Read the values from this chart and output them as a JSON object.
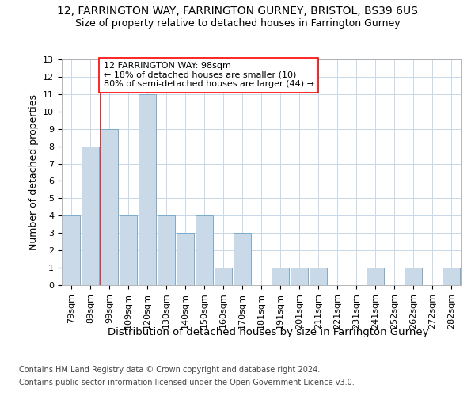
{
  "title_line1": "12, FARRINGTON WAY, FARRINGTON GURNEY, BRISTOL, BS39 6US",
  "title_line2": "Size of property relative to detached houses in Farrington Gurney",
  "xlabel": "Distribution of detached houses by size in Farrington Gurney",
  "ylabel": "Number of detached properties",
  "footnote1": "Contains HM Land Registry data © Crown copyright and database right 2024.",
  "footnote2": "Contains public sector information licensed under the Open Government Licence v3.0.",
  "categories": [
    "79sqm",
    "89sqm",
    "99sqm",
    "109sqm",
    "120sqm",
    "130sqm",
    "140sqm",
    "150sqm",
    "160sqm",
    "170sqm",
    "181sqm",
    "191sqm",
    "201sqm",
    "211sqm",
    "221sqm",
    "231sqm",
    "241sqm",
    "252sqm",
    "262sqm",
    "272sqm",
    "282sqm"
  ],
  "values": [
    4,
    8,
    9,
    4,
    11,
    4,
    3,
    4,
    1,
    3,
    0,
    1,
    1,
    1,
    0,
    0,
    1,
    0,
    1,
    0,
    1
  ],
  "bar_color": "#c9d9e8",
  "bar_edgecolor": "#7aabcc",
  "redline_bar_index": 2,
  "annotation_text_line1": "12 FARRINGTON WAY: 98sqm",
  "annotation_text_line2": "← 18% of detached houses are smaller (10)",
  "annotation_text_line3": "80% of semi-detached houses are larger (44) →",
  "ylim": [
    0,
    13
  ],
  "yticks": [
    0,
    1,
    2,
    3,
    4,
    5,
    6,
    7,
    8,
    9,
    10,
    11,
    12,
    13
  ],
  "grid_color": "#c8d8e8",
  "background_color": "#ffffff",
  "title_fontsize": 10,
  "subtitle_fontsize": 9,
  "ylabel_fontsize": 9,
  "xlabel_fontsize": 9.5,
  "tick_fontsize": 8,
  "annotation_fontsize": 8,
  "footnote_fontsize": 7
}
